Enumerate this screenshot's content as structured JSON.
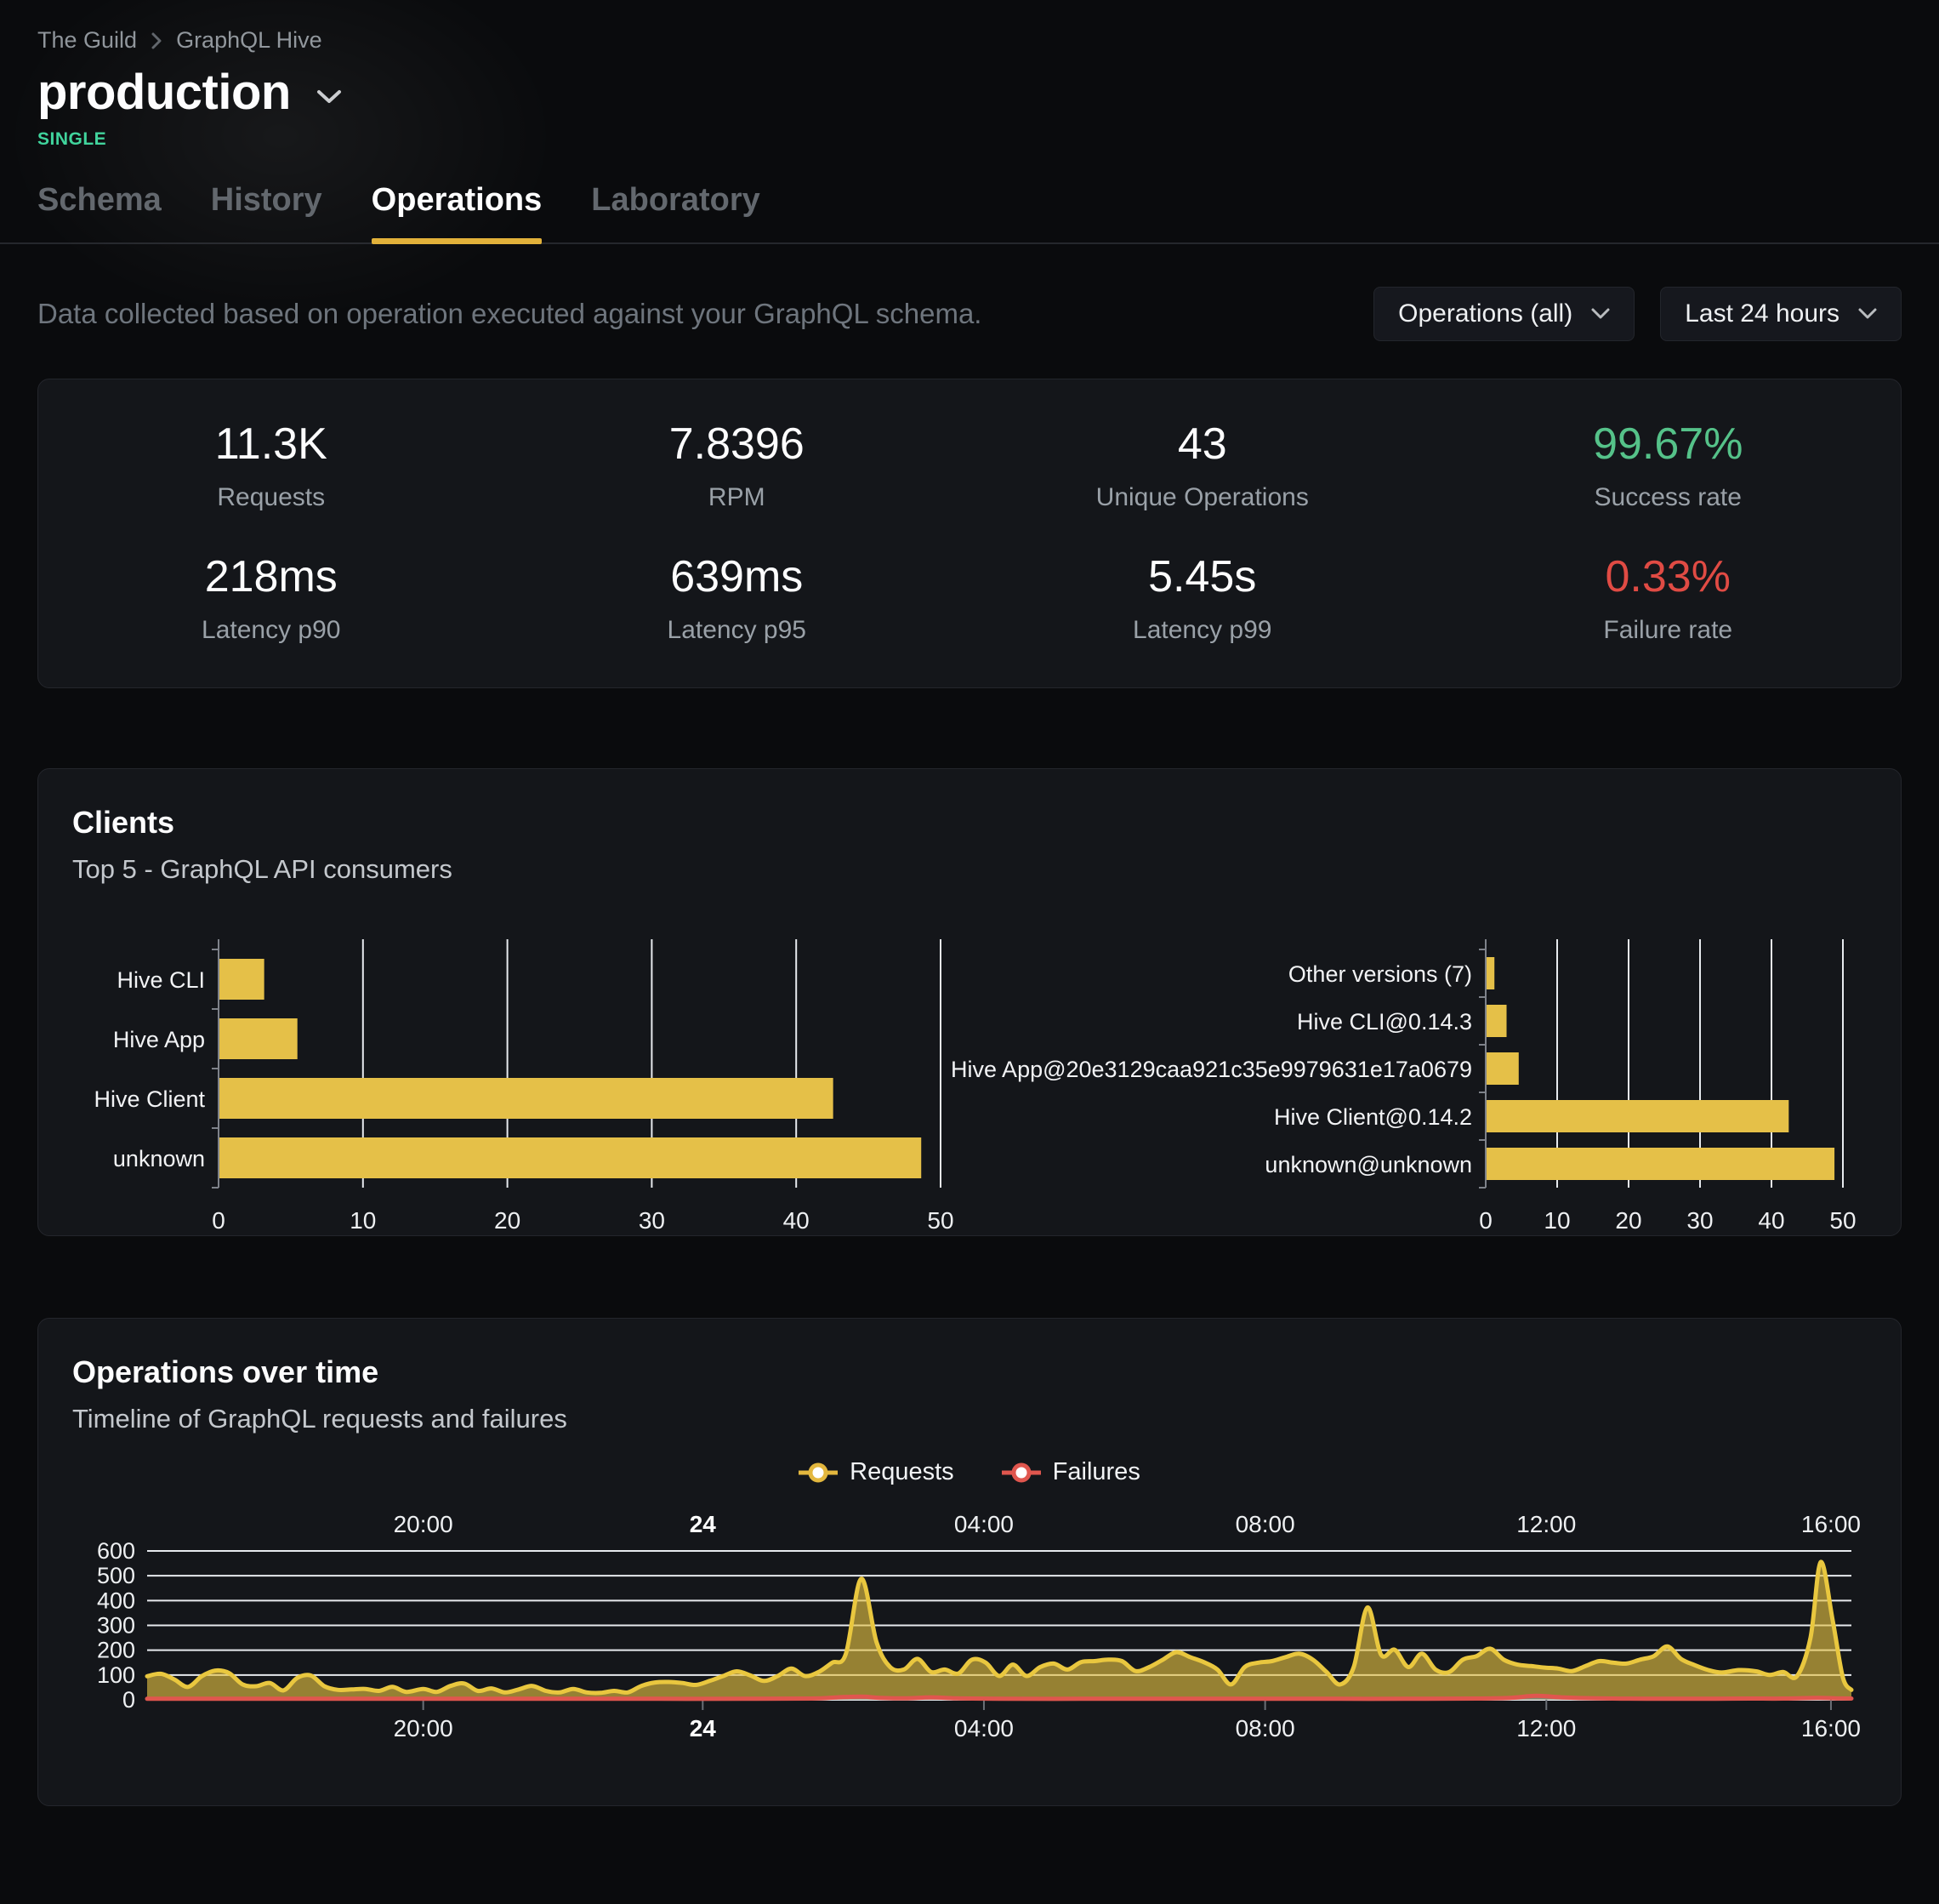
{
  "colors": {
    "accent": "#e2b13a",
    "bar": "#e5c048",
    "requests_line": "#e9c73f",
    "requests_fill": "#e6c343",
    "failures_line": "#e0564e",
    "failures_fill": "#7d8ba0",
    "success_green": "#55c289",
    "badge_green": "#3ed39b",
    "failure_red": "#e04b44",
    "gridline": "#e7eaee",
    "axis": "#7e828a",
    "cat_text": "#f2f3f5",
    "tick_text": "#eef0f2",
    "bottom_tick": "#6a6f76"
  },
  "breadcrumb": {
    "org": "The Guild",
    "project": "GraphQL Hive"
  },
  "header": {
    "target_name": "production",
    "badge": "SINGLE"
  },
  "tabs": [
    {
      "label": "Schema",
      "active": false
    },
    {
      "label": "History",
      "active": false
    },
    {
      "label": "Operations",
      "active": true
    },
    {
      "label": "Laboratory",
      "active": false
    }
  ],
  "filters": {
    "description": "Data collected based on operation executed against your GraphQL schema.",
    "operations_dropdown": "Operations (all)",
    "period_dropdown": "Last 24 hours"
  },
  "stats": [
    {
      "value": "11.3K",
      "label": "Requests",
      "color": ""
    },
    {
      "value": "7.8396",
      "label": "RPM",
      "color": ""
    },
    {
      "value": "43",
      "label": "Unique Operations",
      "color": ""
    },
    {
      "value": "99.67%",
      "label": "Success rate",
      "color": "#55c289"
    },
    {
      "value": "218ms",
      "label": "Latency p90",
      "color": ""
    },
    {
      "value": "639ms",
      "label": "Latency p95",
      "color": ""
    },
    {
      "value": "5.45s",
      "label": "Latency p99",
      "color": ""
    },
    {
      "value": "0.33%",
      "label": "Failure rate",
      "color": "#e04b44"
    }
  ],
  "clients_card": {
    "title": "Clients",
    "subtitle": "Top 5 - GraphQL API consumers"
  },
  "operations_card": {
    "title": "Operations over time",
    "subtitle": "Timeline of GraphQL requests and failures",
    "legend": [
      {
        "label": "Requests",
        "color": "#e9c73f"
      },
      {
        "label": "Failures",
        "color": "#e0564e"
      }
    ]
  },
  "chart_data": [
    {
      "id": "clients_by_name",
      "type": "bar",
      "orientation": "horizontal",
      "title": "Clients - Top 5 GraphQL API consumers (by client)",
      "categories": [
        "Hive CLI",
        "Hive App",
        "Hive Client",
        "unknown"
      ],
      "values": [
        3.1,
        5.4,
        42.5,
        48.6
      ],
      "xlim": [
        0,
        50
      ],
      "ticks": [
        0,
        10,
        20,
        30,
        40,
        50
      ],
      "grid": true
    },
    {
      "id": "clients_by_version",
      "type": "bar",
      "orientation": "horizontal",
      "title": "Clients - Top 5 GraphQL API consumers (by version)",
      "categories": [
        "Other versions (7)",
        "Hive CLI@0.14.3",
        "Hive App@20e3129caa921c35e9979631e17a0679",
        "Hive Client@0.14.2",
        "unknown@unknown"
      ],
      "values": [
        1.1,
        2.8,
        4.5,
        42.3,
        48.7
      ],
      "xlim": [
        0,
        50
      ],
      "ticks": [
        0,
        10,
        20,
        30,
        40,
        50
      ],
      "grid": true
    },
    {
      "id": "operations_over_time",
      "type": "area",
      "title": "Operations over time",
      "ylim": [
        0,
        600
      ],
      "y_ticks": [
        600,
        500,
        400,
        300,
        200,
        100,
        0
      ],
      "x_ticks": [
        {
          "pos": 16.2,
          "label": "20:00",
          "bold": false
        },
        {
          "pos": 32.6,
          "label": "24",
          "bold": true
        },
        {
          "pos": 49.1,
          "label": "04:00",
          "bold": false
        },
        {
          "pos": 65.6,
          "label": "08:00",
          "bold": false
        },
        {
          "pos": 82.1,
          "label": "12:00",
          "bold": false
        },
        {
          "pos": 98.8,
          "label": "16:00",
          "bold": false
        }
      ],
      "series": [
        {
          "name": "Requests",
          "points": [
            [
              0,
              95
            ],
            [
              0.8,
              105
            ],
            [
              1.6,
              82
            ],
            [
              2.4,
              52
            ],
            [
              3.2,
              95
            ],
            [
              4.0,
              118
            ],
            [
              4.8,
              108
            ],
            [
              5.6,
              62
            ],
            [
              6.4,
              55
            ],
            [
              7.2,
              68
            ],
            [
              8.0,
              38
            ],
            [
              8.8,
              88
            ],
            [
              9.6,
              98
            ],
            [
              10.4,
              55
            ],
            [
              11.2,
              40
            ],
            [
              12.0,
              42
            ],
            [
              12.8,
              44
            ],
            [
              13.6,
              36
            ],
            [
              14.4,
              52
            ],
            [
              15.2,
              32
            ],
            [
              16.2,
              44
            ],
            [
              17.0,
              32
            ],
            [
              17.8,
              56
            ],
            [
              18.6,
              66
            ],
            [
              19.4,
              36
            ],
            [
              20.2,
              46
            ],
            [
              21.0,
              30
            ],
            [
              21.8,
              42
            ],
            [
              22.6,
              56
            ],
            [
              23.4,
              36
            ],
            [
              24.2,
              30
            ],
            [
              25.0,
              44
            ],
            [
              25.8,
              30
            ],
            [
              26.6,
              28
            ],
            [
              27.4,
              36
            ],
            [
              28.2,
              30
            ],
            [
              29.0,
              56
            ],
            [
              29.8,
              70
            ],
            [
              30.6,
              72
            ],
            [
              31.4,
              68
            ],
            [
              32.2,
              60
            ],
            [
              33.0,
              76
            ],
            [
              33.8,
              96
            ],
            [
              34.6,
              115
            ],
            [
              35.4,
              98
            ],
            [
              36.2,
              76
            ],
            [
              37.0,
              96
            ],
            [
              37.8,
              126
            ],
            [
              38.6,
              96
            ],
            [
              39.4,
              112
            ],
            [
              40.2,
              150
            ],
            [
              41.0,
              185
            ],
            [
              41.9,
              488
            ],
            [
              42.8,
              232
            ],
            [
              43.6,
              132
            ],
            [
              44.4,
              122
            ],
            [
              45.2,
              165
            ],
            [
              46.0,
              112
            ],
            [
              46.8,
              122
            ],
            [
              47.6,
              106
            ],
            [
              48.4,
              162
            ],
            [
              49.2,
              150
            ],
            [
              50.0,
              96
            ],
            [
              50.8,
              142
            ],
            [
              51.6,
              96
            ],
            [
              52.4,
              132
            ],
            [
              53.2,
              146
            ],
            [
              54.0,
              122
            ],
            [
              54.8,
              152
            ],
            [
              55.6,
              156
            ],
            [
              56.4,
              162
            ],
            [
              57.2,
              156
            ],
            [
              58.0,
              116
            ],
            [
              58.8,
              132
            ],
            [
              59.6,
              162
            ],
            [
              60.4,
              192
            ],
            [
              61.2,
              172
            ],
            [
              62.0,
              152
            ],
            [
              62.8,
              122
            ],
            [
              63.6,
              62
            ],
            [
              64.4,
              132
            ],
            [
              65.2,
              150
            ],
            [
              66.0,
              156
            ],
            [
              66.8,
              172
            ],
            [
              67.6,
              186
            ],
            [
              68.4,
              162
            ],
            [
              69.2,
              112
            ],
            [
              70.0,
              62
            ],
            [
              70.8,
              132
            ],
            [
              71.6,
              372
            ],
            [
              72.4,
              182
            ],
            [
              73.2,
              202
            ],
            [
              74.0,
              132
            ],
            [
              74.8,
              186
            ],
            [
              75.6,
              122
            ],
            [
              76.4,
              112
            ],
            [
              77.2,
              162
            ],
            [
              78.0,
              176
            ],
            [
              78.8,
              206
            ],
            [
              79.6,
              162
            ],
            [
              80.4,
              142
            ],
            [
              81.2,
              136
            ],
            [
              82.0,
              130
            ],
            [
              82.8,
              126
            ],
            [
              83.6,
              116
            ],
            [
              84.4,
              136
            ],
            [
              85.2,
              156
            ],
            [
              86.0,
              150
            ],
            [
              86.8,
              146
            ],
            [
              87.6,
              162
            ],
            [
              88.4,
              176
            ],
            [
              89.2,
              215
            ],
            [
              90.0,
              165
            ],
            [
              90.8,
              140
            ],
            [
              91.6,
              120
            ],
            [
              92.4,
              110
            ],
            [
              93.4,
              120
            ],
            [
              94.4,
              115
            ],
            [
              95.2,
              100
            ],
            [
              96.0,
              112
            ],
            [
              96.8,
              95
            ],
            [
              97.6,
              250
            ],
            [
              98.2,
              555
            ],
            [
              98.9,
              320
            ],
            [
              99.5,
              90
            ],
            [
              100,
              40
            ]
          ]
        },
        {
          "name": "Failures",
          "points": [
            [
              0,
              4
            ],
            [
              5,
              4
            ],
            [
              10,
              4
            ],
            [
              15,
              4
            ],
            [
              20,
              4
            ],
            [
              25,
              4
            ],
            [
              30,
              4
            ],
            [
              35,
              4
            ],
            [
              39,
              5
            ],
            [
              40.5,
              10
            ],
            [
              41.9,
              13
            ],
            [
              43,
              8
            ],
            [
              44.5,
              6
            ],
            [
              46,
              10
            ],
            [
              47.5,
              6
            ],
            [
              50,
              4
            ],
            [
              55,
              4
            ],
            [
              60,
              4
            ],
            [
              65,
              4
            ],
            [
              70,
              4
            ],
            [
              75,
              4
            ],
            [
              78,
              5
            ],
            [
              80,
              8
            ],
            [
              81.5,
              16
            ],
            [
              83,
              10
            ],
            [
              85,
              6
            ],
            [
              88,
              4
            ],
            [
              91,
              4
            ],
            [
              94,
              5
            ],
            [
              96,
              5
            ],
            [
              98,
              8
            ],
            [
              99,
              6
            ],
            [
              100,
              5
            ]
          ]
        }
      ]
    }
  ]
}
